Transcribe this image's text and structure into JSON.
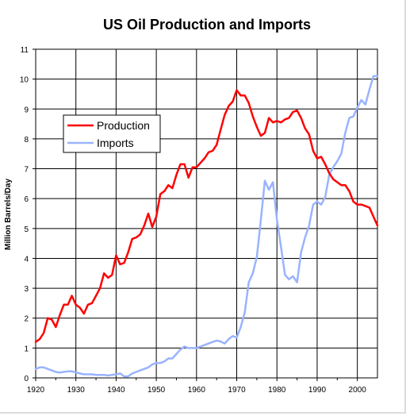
{
  "chart_data": {
    "type": "line",
    "title": "US Oil Production and Imports",
    "xlabel": "",
    "ylabel": "Million Barrels/Day",
    "xlim": [
      1920,
      2005
    ],
    "ylim": [
      0,
      11
    ],
    "x_ticks": [
      "1920",
      "1930",
      "1940",
      "1950",
      "1960",
      "1970",
      "1980",
      "1990",
      "2000"
    ],
    "y_ticks": [
      "0",
      "1",
      "2",
      "3",
      "4",
      "5",
      "6",
      "7",
      "8",
      "9",
      "10",
      "11"
    ],
    "grid": true,
    "legend_position": "upper-left",
    "series": [
      {
        "name": "Production",
        "color": "#ff0000",
        "points": [
          [
            1920,
            1.2
          ],
          [
            1921,
            1.3
          ],
          [
            1922,
            1.5
          ],
          [
            1923,
            2.0
          ],
          [
            1924,
            1.95
          ],
          [
            1925,
            1.7
          ],
          [
            1926,
            2.1
          ],
          [
            1927,
            2.45
          ],
          [
            1928,
            2.45
          ],
          [
            1929,
            2.75
          ],
          [
            1930,
            2.45
          ],
          [
            1931,
            2.35
          ],
          [
            1932,
            2.15
          ],
          [
            1933,
            2.45
          ],
          [
            1934,
            2.5
          ],
          [
            1935,
            2.75
          ],
          [
            1936,
            3.0
          ],
          [
            1937,
            3.5
          ],
          [
            1938,
            3.35
          ],
          [
            1939,
            3.45
          ],
          [
            1940,
            4.1
          ],
          [
            1941,
            3.8
          ],
          [
            1942,
            3.85
          ],
          [
            1943,
            4.2
          ],
          [
            1944,
            4.65
          ],
          [
            1945,
            4.7
          ],
          [
            1946,
            4.8
          ],
          [
            1947,
            5.1
          ],
          [
            1948,
            5.5
          ],
          [
            1949,
            5.05
          ],
          [
            1950,
            5.4
          ],
          [
            1951,
            6.15
          ],
          [
            1952,
            6.25
          ],
          [
            1953,
            6.45
          ],
          [
            1954,
            6.35
          ],
          [
            1955,
            6.8
          ],
          [
            1956,
            7.15
          ],
          [
            1957,
            7.15
          ],
          [
            1958,
            6.7
          ],
          [
            1959,
            7.05
          ],
          [
            1960,
            7.05
          ],
          [
            1961,
            7.2
          ],
          [
            1962,
            7.35
          ],
          [
            1963,
            7.55
          ],
          [
            1964,
            7.6
          ],
          [
            1965,
            7.8
          ],
          [
            1966,
            8.3
          ],
          [
            1967,
            8.8
          ],
          [
            1968,
            9.1
          ],
          [
            1969,
            9.25
          ],
          [
            1970,
            9.63
          ],
          [
            1971,
            9.45
          ],
          [
            1972,
            9.45
          ],
          [
            1973,
            9.2
          ],
          [
            1974,
            8.75
          ],
          [
            1975,
            8.4
          ],
          [
            1976,
            8.1
          ],
          [
            1977,
            8.2
          ],
          [
            1978,
            8.7
          ],
          [
            1979,
            8.55
          ],
          [
            1980,
            8.6
          ],
          [
            1981,
            8.55
          ],
          [
            1982,
            8.65
          ],
          [
            1983,
            8.7
          ],
          [
            1984,
            8.9
          ],
          [
            1985,
            8.95
          ],
          [
            1986,
            8.7
          ],
          [
            1987,
            8.35
          ],
          [
            1988,
            8.15
          ],
          [
            1989,
            7.6
          ],
          [
            1990,
            7.35
          ],
          [
            1991,
            7.4
          ],
          [
            1992,
            7.15
          ],
          [
            1993,
            6.85
          ],
          [
            1994,
            6.65
          ],
          [
            1995,
            6.55
          ],
          [
            1996,
            6.45
          ],
          [
            1997,
            6.45
          ],
          [
            1998,
            6.25
          ],
          [
            1999,
            5.9
          ],
          [
            2000,
            5.8
          ],
          [
            2001,
            5.8
          ],
          [
            2002,
            5.75
          ],
          [
            2003,
            5.7
          ],
          [
            2004,
            5.4
          ],
          [
            2005,
            5.1
          ]
        ]
      },
      {
        "name": "Imports",
        "color": "#99b3ff",
        "points": [
          [
            1920,
            0.3
          ],
          [
            1921,
            0.35
          ],
          [
            1922,
            0.35
          ],
          [
            1923,
            0.3
          ],
          [
            1924,
            0.25
          ],
          [
            1925,
            0.2
          ],
          [
            1926,
            0.18
          ],
          [
            1927,
            0.2
          ],
          [
            1928,
            0.22
          ],
          [
            1929,
            0.22
          ],
          [
            1930,
            0.18
          ],
          [
            1931,
            0.15
          ],
          [
            1932,
            0.12
          ],
          [
            1933,
            0.12
          ],
          [
            1934,
            0.12
          ],
          [
            1935,
            0.1
          ],
          [
            1936,
            0.1
          ],
          [
            1937,
            0.1
          ],
          [
            1938,
            0.08
          ],
          [
            1939,
            0.1
          ],
          [
            1940,
            0.12
          ],
          [
            1941,
            0.15
          ],
          [
            1942,
            0.05
          ],
          [
            1943,
            0.05
          ],
          [
            1944,
            0.15
          ],
          [
            1945,
            0.2
          ],
          [
            1946,
            0.25
          ],
          [
            1947,
            0.3
          ],
          [
            1948,
            0.35
          ],
          [
            1949,
            0.45
          ],
          [
            1950,
            0.5
          ],
          [
            1951,
            0.5
          ],
          [
            1952,
            0.55
          ],
          [
            1953,
            0.65
          ],
          [
            1954,
            0.65
          ],
          [
            1955,
            0.8
          ],
          [
            1956,
            0.95
          ],
          [
            1957,
            1.05
          ],
          [
            1958,
            1.0
          ],
          [
            1959,
            1.0
          ],
          [
            1960,
            1.0
          ],
          [
            1961,
            1.05
          ],
          [
            1962,
            1.1
          ],
          [
            1963,
            1.15
          ],
          [
            1964,
            1.2
          ],
          [
            1965,
            1.25
          ],
          [
            1966,
            1.22
          ],
          [
            1967,
            1.15
          ],
          [
            1968,
            1.3
          ],
          [
            1969,
            1.4
          ],
          [
            1970,
            1.35
          ],
          [
            1971,
            1.7
          ],
          [
            1972,
            2.2
          ],
          [
            1973,
            3.2
          ],
          [
            1974,
            3.5
          ],
          [
            1975,
            4.05
          ],
          [
            1976,
            5.3
          ],
          [
            1977,
            6.6
          ],
          [
            1978,
            6.3
          ],
          [
            1979,
            6.55
          ],
          [
            1980,
            5.3
          ],
          [
            1981,
            4.4
          ],
          [
            1982,
            3.45
          ],
          [
            1983,
            3.3
          ],
          [
            1984,
            3.4
          ],
          [
            1985,
            3.2
          ],
          [
            1986,
            4.2
          ],
          [
            1987,
            4.7
          ],
          [
            1988,
            5.1
          ],
          [
            1989,
            5.8
          ],
          [
            1990,
            5.9
          ],
          [
            1991,
            5.8
          ],
          [
            1992,
            6.05
          ],
          [
            1993,
            6.8
          ],
          [
            1994,
            7.05
          ],
          [
            1995,
            7.25
          ],
          [
            1996,
            7.5
          ],
          [
            1997,
            8.2
          ],
          [
            1998,
            8.7
          ],
          [
            1999,
            8.75
          ],
          [
            2000,
            9.05
          ],
          [
            2001,
            9.3
          ],
          [
            2002,
            9.15
          ],
          [
            2003,
            9.65
          ],
          [
            2004,
            10.1
          ],
          [
            2005,
            10.1
          ]
        ]
      }
    ]
  }
}
